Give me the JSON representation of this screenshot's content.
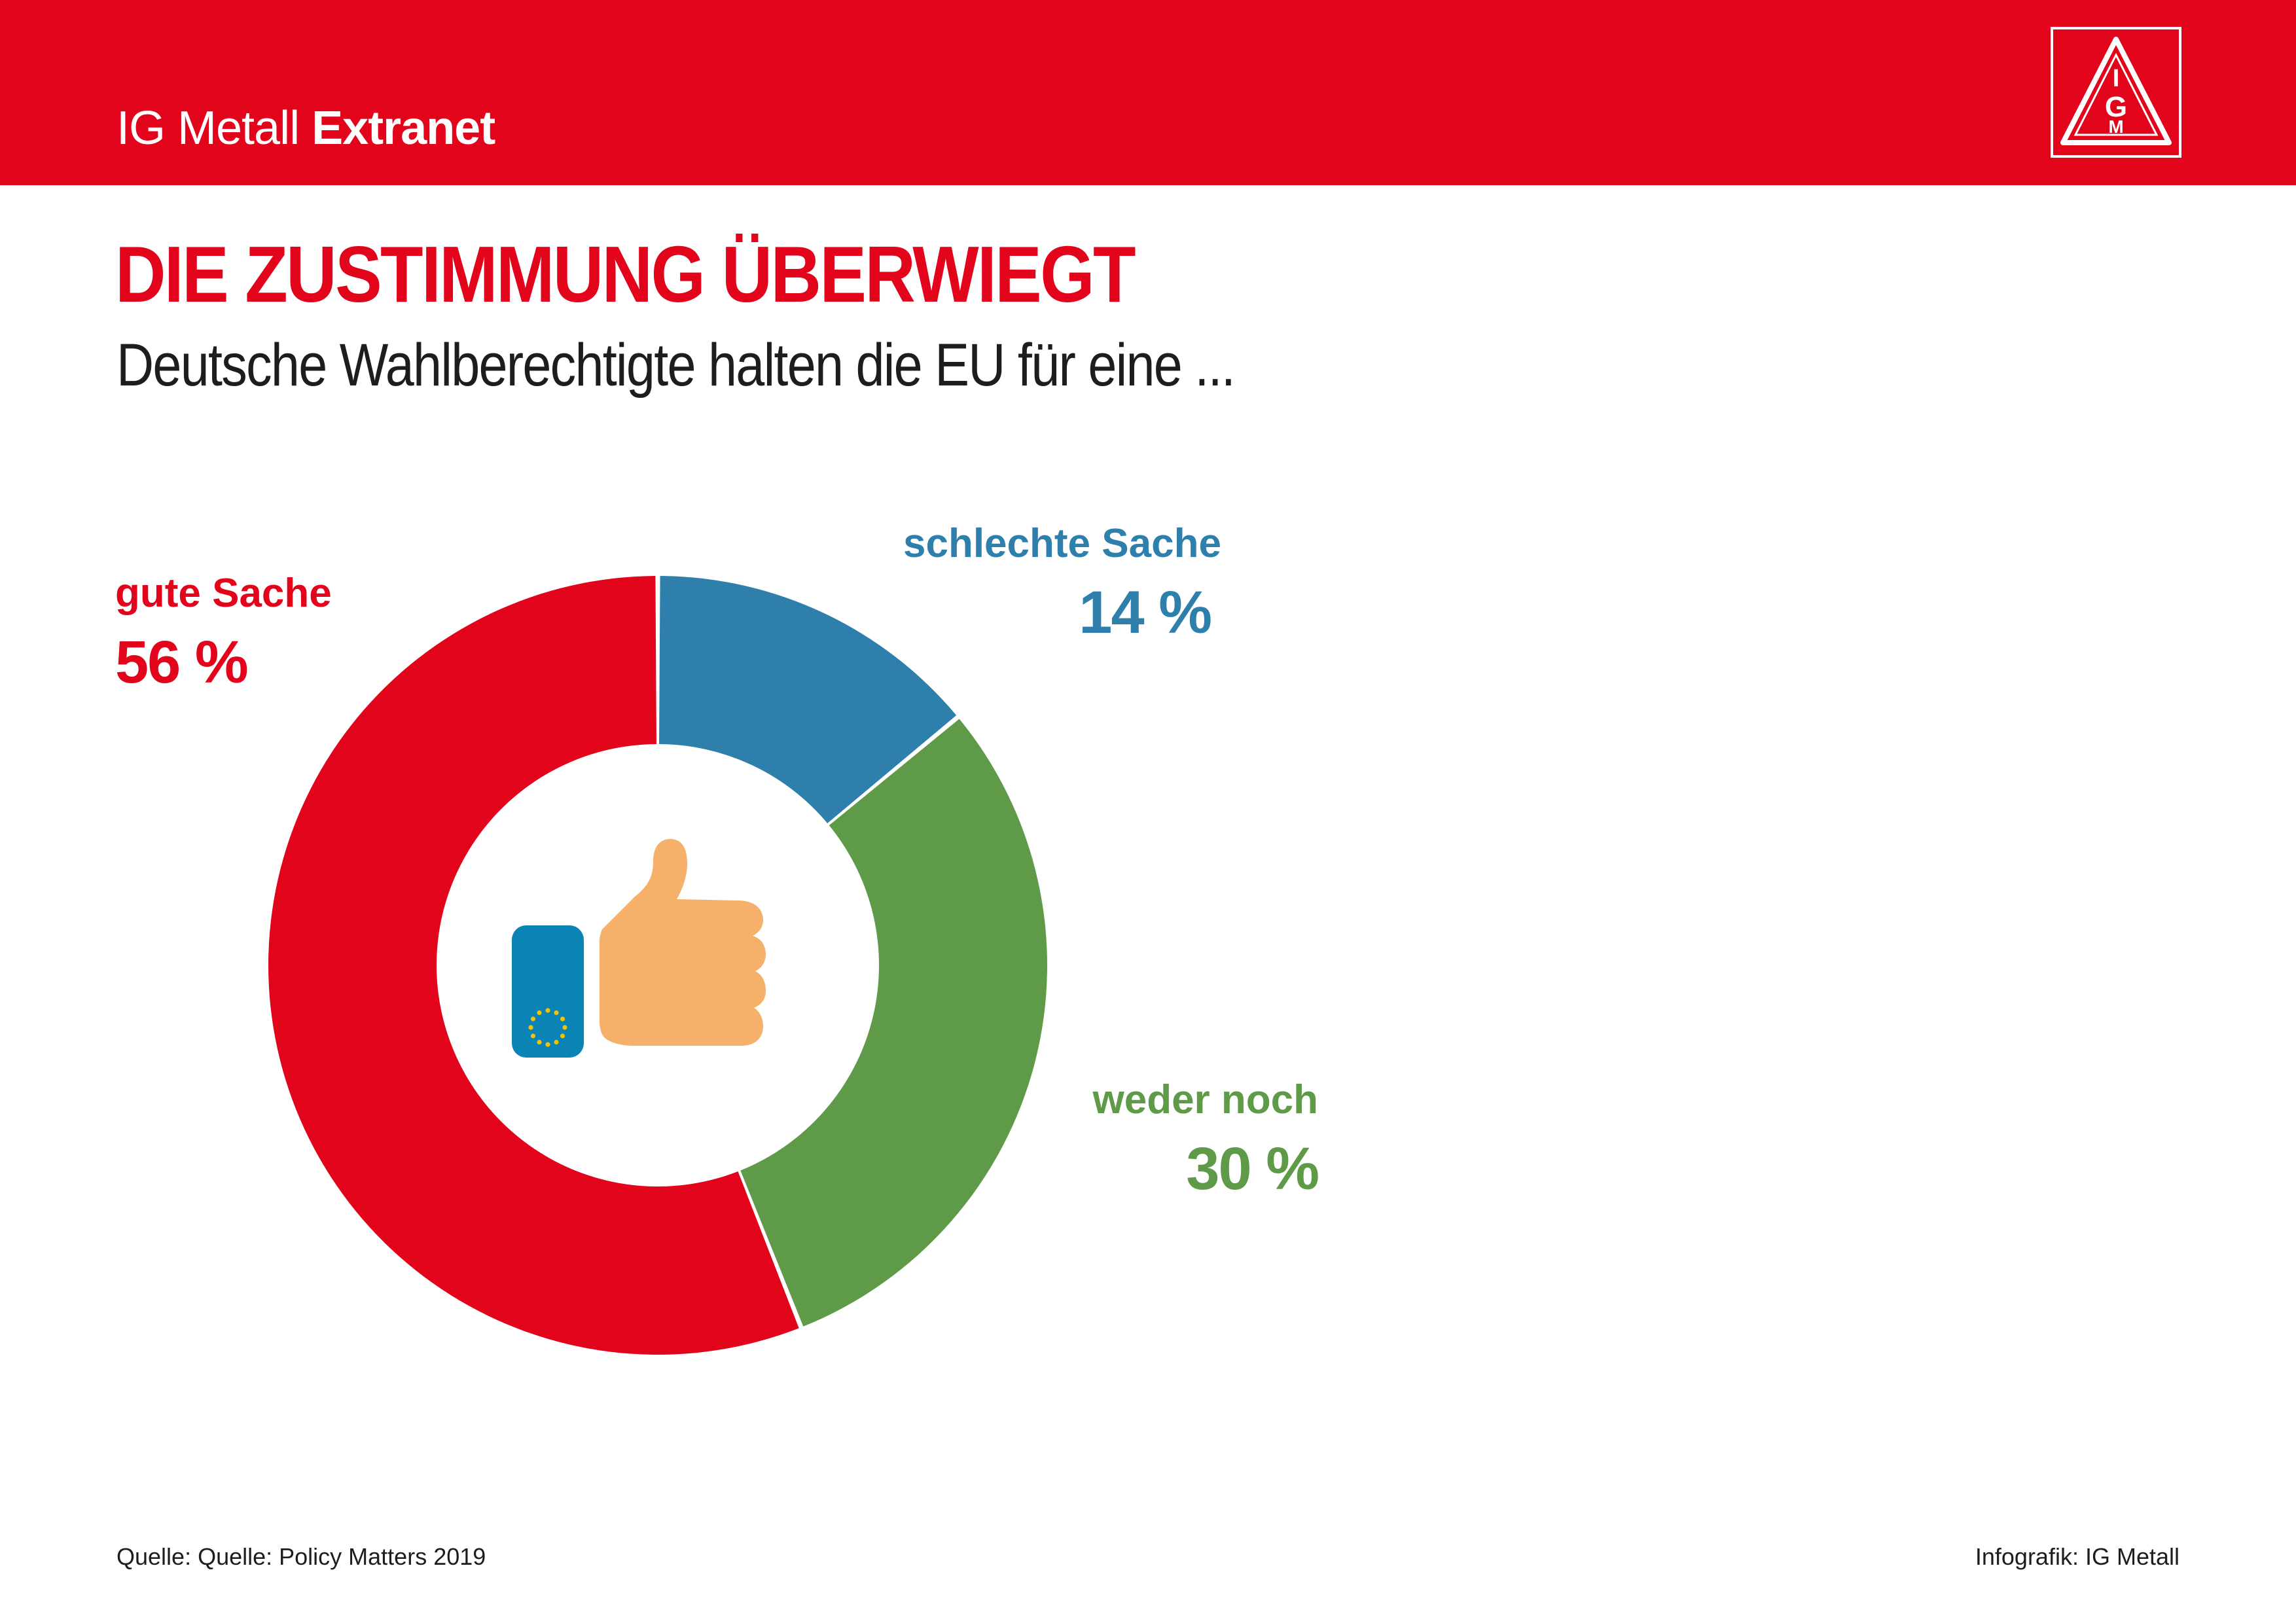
{
  "header": {
    "brand_light": "IG Metall",
    "brand_bold": "Extranet",
    "logo_icon": "ig-metall-triangle-logo",
    "logo_letters": [
      "I",
      "G",
      "M"
    ],
    "bar_color": "#e2041b"
  },
  "title": "DIE ZUSTIMMUNG ÜBERWIEGT",
  "subtitle": "Deutsche Wahlberechtigte halten die EU für eine ...",
  "chart_data": {
    "type": "pie",
    "style": "donut",
    "title": "DIE ZUSTIMMUNG ÜBERWIEGT",
    "subtitle": "Deutsche Wahlberechtigte halten die EU für eine ...",
    "unit": "%",
    "slices": [
      {
        "label": "schlechte Sache",
        "value": 14,
        "display": "14 %",
        "color": "#2e7fab"
      },
      {
        "label": "weder noch",
        "value": 30,
        "display": "30 %",
        "color": "#5e9a48"
      },
      {
        "label": "gute Sache",
        "value": 56,
        "display": "56 %",
        "color": "#e2041b"
      }
    ],
    "start_angle": "12 o'clock, clockwise",
    "center_icon": "eu-card-thumbs-up-icon"
  },
  "footer": {
    "source": "Quelle: Quelle: Policy Matters 2019",
    "credit": "Infografik: IG Metall"
  }
}
